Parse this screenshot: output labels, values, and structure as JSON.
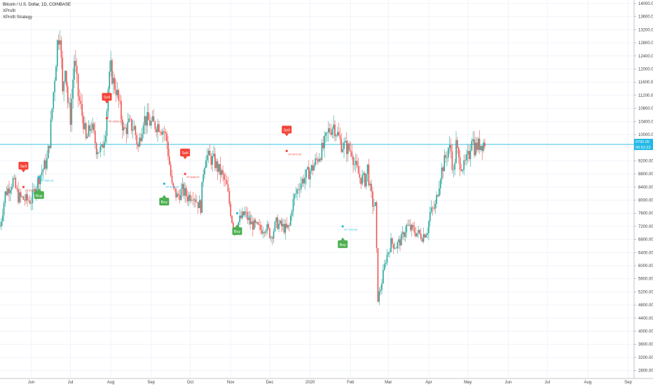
{
  "legend": {
    "title": "Bitcoin / U.S. Dollar, 1D, COINBASE",
    "indicator1": "XProfit",
    "indicator2": "XProfit Strategy"
  },
  "price_label": {
    "value": "9760.05",
    "countdown": "09:52:23"
  },
  "colors": {
    "up": "#26a69a",
    "down": "#ef5350",
    "buy_badge": "#4caf50",
    "sell_badge": "#f44336",
    "price_line": "#21b8e6",
    "grid": "#f0f3fa",
    "axis_text": "#444444"
  },
  "chart_data": {
    "type": "candlestick",
    "title": "Bitcoin / U.S. Dollar, 1D, COINBASE",
    "ylim": [
      2600,
      14000
    ],
    "y_ticks": [
      14000,
      13600,
      13200,
      12800,
      12400,
      12000,
      11600,
      11200,
      10800,
      10400,
      10000,
      9600,
      9200,
      8800,
      8400,
      8000,
      7600,
      7200,
      6800,
      6400,
      6000,
      5600,
      5200,
      4800,
      4400,
      4000,
      3600,
      3200,
      2800
    ],
    "y_tick_labels": [
      "14000.00",
      "13600.00",
      "13200.00",
      "12800.00",
      "12400.00",
      "12000.00",
      "11600.00",
      "11200.00",
      "10800.00",
      "10400.00",
      "10000.00",
      "9600.00",
      "9200.00",
      "8800.00",
      "8400.00",
      "8000.00",
      "7600.00",
      "7200.00",
      "6800.00",
      "6400.00",
      "6000.00",
      "5600.00",
      "5200.00",
      "4800.00",
      "4400.00",
      "4000.00",
      "3600.00",
      "3200.00",
      "2800.00"
    ],
    "x_labels": [
      "Jun",
      "Jul",
      "Aug",
      "Sep",
      "Oct",
      "Nov",
      "Dec",
      "2020",
      "Feb",
      "Mar",
      "Apr",
      "May",
      "Jun",
      "Jul",
      "Aug",
      "Sep"
    ],
    "x_label_days": [
      24,
      54,
      85,
      116,
      146,
      177,
      207,
      238,
      269,
      298,
      329,
      359,
      390,
      420,
      451,
      482
    ],
    "last_price": 9760.05,
    "current_price_line": 9700,
    "price_anchors": [
      {
        "day": 0,
        "price": 7200
      },
      {
        "day": 4,
        "price": 8200
      },
      {
        "day": 10,
        "price": 8600
      },
      {
        "day": 14,
        "price": 8100
      },
      {
        "day": 20,
        "price": 8000
      },
      {
        "day": 24,
        "price": 8000
      },
      {
        "day": 30,
        "price": 8700
      },
      {
        "day": 36,
        "price": 9200
      },
      {
        "day": 38,
        "price": 9800
      },
      {
        "day": 40,
        "price": 10800
      },
      {
        "day": 44,
        "price": 12800
      },
      {
        "day": 46,
        "price": 13200
      },
      {
        "day": 48,
        "price": 11200
      },
      {
        "day": 50,
        "price": 12200
      },
      {
        "day": 52,
        "price": 11000
      },
      {
        "day": 54,
        "price": 10500
      },
      {
        "day": 57,
        "price": 12300
      },
      {
        "day": 60,
        "price": 11200
      },
      {
        "day": 64,
        "price": 10400
      },
      {
        "day": 66,
        "price": 9800
      },
      {
        "day": 70,
        "price": 10300
      },
      {
        "day": 74,
        "price": 9600
      },
      {
        "day": 78,
        "price": 9500
      },
      {
        "day": 81,
        "price": 10200
      },
      {
        "day": 83,
        "price": 11400
      },
      {
        "day": 85,
        "price": 12000
      },
      {
        "day": 87,
        "price": 11600
      },
      {
        "day": 89,
        "price": 11400
      },
      {
        "day": 91,
        "price": 11000
      },
      {
        "day": 95,
        "price": 10100
      },
      {
        "day": 99,
        "price": 10300
      },
      {
        "day": 103,
        "price": 10200
      },
      {
        "day": 106,
        "price": 9600
      },
      {
        "day": 110,
        "price": 10500
      },
      {
        "day": 114,
        "price": 10400
      },
      {
        "day": 118,
        "price": 10300
      },
      {
        "day": 122,
        "price": 10300
      },
      {
        "day": 126,
        "price": 10100
      },
      {
        "day": 128,
        "price": 9800
      },
      {
        "day": 132,
        "price": 8400
      },
      {
        "day": 136,
        "price": 8100
      },
      {
        "day": 140,
        "price": 8300
      },
      {
        "day": 144,
        "price": 8100
      },
      {
        "day": 148,
        "price": 8200
      },
      {
        "day": 152,
        "price": 7900
      },
      {
        "day": 154,
        "price": 7800
      },
      {
        "day": 156,
        "price": 8900
      },
      {
        "day": 158,
        "price": 9400
      },
      {
        "day": 160,
        "price": 9300
      },
      {
        "day": 164,
        "price": 9200
      },
      {
        "day": 168,
        "price": 8900
      },
      {
        "day": 170,
        "price": 8800
      },
      {
        "day": 174,
        "price": 8400
      },
      {
        "day": 178,
        "price": 7400
      },
      {
        "day": 180,
        "price": 7100
      },
      {
        "day": 184,
        "price": 7400
      },
      {
        "day": 188,
        "price": 7600
      },
      {
        "day": 192,
        "price": 7300
      },
      {
        "day": 196,
        "price": 7200
      },
      {
        "day": 200,
        "price": 7100
      },
      {
        "day": 204,
        "price": 7200
      },
      {
        "day": 208,
        "price": 6900
      },
      {
        "day": 212,
        "price": 7300
      },
      {
        "day": 216,
        "price": 7200
      },
      {
        "day": 220,
        "price": 7100
      },
      {
        "day": 222,
        "price": 7200
      },
      {
        "day": 224,
        "price": 7800
      },
      {
        "day": 226,
        "price": 8100
      },
      {
        "day": 230,
        "price": 8500
      },
      {
        "day": 234,
        "price": 8700
      },
      {
        "day": 236,
        "price": 8800
      },
      {
        "day": 240,
        "price": 9000
      },
      {
        "day": 244,
        "price": 9300
      },
      {
        "day": 248,
        "price": 9600
      },
      {
        "day": 252,
        "price": 10100
      },
      {
        "day": 256,
        "price": 10300
      },
      {
        "day": 260,
        "price": 9900
      },
      {
        "day": 262,
        "price": 9700
      },
      {
        "day": 266,
        "price": 9600
      },
      {
        "day": 270,
        "price": 9500
      },
      {
        "day": 272,
        "price": 9100
      },
      {
        "day": 276,
        "price": 8700
      },
      {
        "day": 280,
        "price": 8600
      },
      {
        "day": 282,
        "price": 9000
      },
      {
        "day": 284,
        "price": 8300
      },
      {
        "day": 286,
        "price": 7900
      },
      {
        "day": 288,
        "price": 7800
      },
      {
        "day": 290,
        "price": 5000
      },
      {
        "day": 292,
        "price": 5300
      },
      {
        "day": 296,
        "price": 6200
      },
      {
        "day": 300,
        "price": 6700
      },
      {
        "day": 304,
        "price": 6600
      },
      {
        "day": 308,
        "price": 6800
      },
      {
        "day": 312,
        "price": 7200
      },
      {
        "day": 316,
        "price": 7100
      },
      {
        "day": 320,
        "price": 7000
      },
      {
        "day": 324,
        "price": 6900
      },
      {
        "day": 328,
        "price": 7100
      },
      {
        "day": 330,
        "price": 7600
      },
      {
        "day": 334,
        "price": 7800
      },
      {
        "day": 338,
        "price": 8800
      },
      {
        "day": 342,
        "price": 9300
      },
      {
        "day": 344,
        "price": 9600
      },
      {
        "day": 346,
        "price": 9500
      },
      {
        "day": 348,
        "price": 8800
      },
      {
        "day": 350,
        "price": 9700
      },
      {
        "day": 352,
        "price": 9200
      },
      {
        "day": 356,
        "price": 9000
      },
      {
        "day": 360,
        "price": 9400
      },
      {
        "day": 362,
        "price": 10000
      },
      {
        "day": 364,
        "price": 9600
      },
      {
        "day": 368,
        "price": 9700
      },
      {
        "day": 372,
        "price": 9760
      }
    ],
    "signals": [
      {
        "type": "Sell",
        "day": 18,
        "price": 8400,
        "entry_label": "XP 8123.27"
      },
      {
        "type": "Buy",
        "day": 30,
        "price": 8700,
        "entry_label": "XP 9352.43"
      },
      {
        "type": "Sell",
        "day": 82,
        "price": 10500,
        "entry_label": "XP 10394.62"
      },
      {
        "type": "Buy",
        "day": 126,
        "price": 8500,
        "entry_label": "XP 9248.43"
      },
      {
        "type": "Sell",
        "day": 142,
        "price": 8800,
        "entry_label": "XP 8283.67"
      },
      {
        "type": "Buy",
        "day": 182,
        "price": 7600,
        "entry_label": "XP 7323.09"
      },
      {
        "type": "Sell",
        "day": 220,
        "price": 9500,
        "entry_label": "XP 9270.00"
      },
      {
        "type": "Buy",
        "day": 263,
        "price": 7200,
        "entry_label": "XP 7223.09"
      }
    ],
    "signal_text": {
      "buy": "Buy",
      "sell": "Sell"
    }
  }
}
